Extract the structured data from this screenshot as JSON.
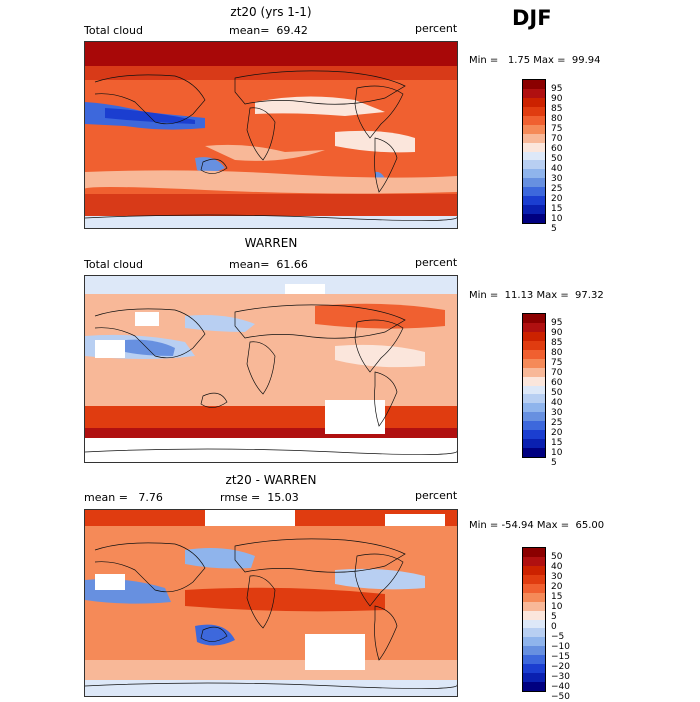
{
  "season": "DJF",
  "panels": [
    {
      "title": "zt20 (yrs 1-1)",
      "left_label": "Total cloud",
      "mean_label": "mean=  69.42",
      "units": "percent",
      "minmax": "Min =   1.75 Max =  99.94",
      "colorbar_labels": [
        "95",
        "90",
        "85",
        "80",
        "75",
        "70",
        "60",
        "50",
        "40",
        "30",
        "25",
        "20",
        "15",
        "10",
        "5"
      ],
      "colorbar_colors": [
        "#8b0000",
        "#b01010",
        "#cc2200",
        "#e03c10",
        "#f06030",
        "#f58a58",
        "#f8b898",
        "#fbe6dc",
        "#dde8f8",
        "#b8cff2",
        "#8fb4ec",
        "#6790e0",
        "#3d68dc",
        "#1b3ed0",
        "#0a20b0",
        "#000080"
      ]
    },
    {
      "title": "WARREN",
      "left_label": "Total cloud",
      "mean_label": "mean=  61.66",
      "units": "percent",
      "minmax": "Min =  11.13 Max =  97.32",
      "colorbar_labels": [
        "95",
        "90",
        "85",
        "80",
        "75",
        "70",
        "60",
        "50",
        "40",
        "30",
        "25",
        "20",
        "15",
        "10",
        "5"
      ],
      "colorbar_colors": [
        "#8b0000",
        "#b01010",
        "#cc2200",
        "#e03c10",
        "#f06030",
        "#f58a58",
        "#f8b898",
        "#fbe6dc",
        "#dde8f8",
        "#b8cff2",
        "#8fb4ec",
        "#6790e0",
        "#3d68dc",
        "#1b3ed0",
        "#0a20b0",
        "#000080"
      ]
    },
    {
      "title": "zt20 - WARREN",
      "left_label": "mean =   7.76",
      "mean_label": "rmse =  15.03",
      "units": "percent",
      "minmax": "Min = -54.94 Max =  65.00",
      "colorbar_labels": [
        "50",
        "40",
        "30",
        "20",
        "15",
        "10",
        "5",
        "0",
        "−5",
        "−10",
        "−15",
        "−20",
        "−30",
        "−40",
        "−50"
      ],
      "colorbar_colors": [
        "#8b0000",
        "#b01010",
        "#cc2200",
        "#e03c10",
        "#f06030",
        "#f58a58",
        "#f8b898",
        "#fbe6dc",
        "#dde8f8",
        "#b8cff2",
        "#8fb4ec",
        "#6790e0",
        "#3d68dc",
        "#1b3ed0",
        "#0a20b0",
        "#000080"
      ]
    }
  ]
}
